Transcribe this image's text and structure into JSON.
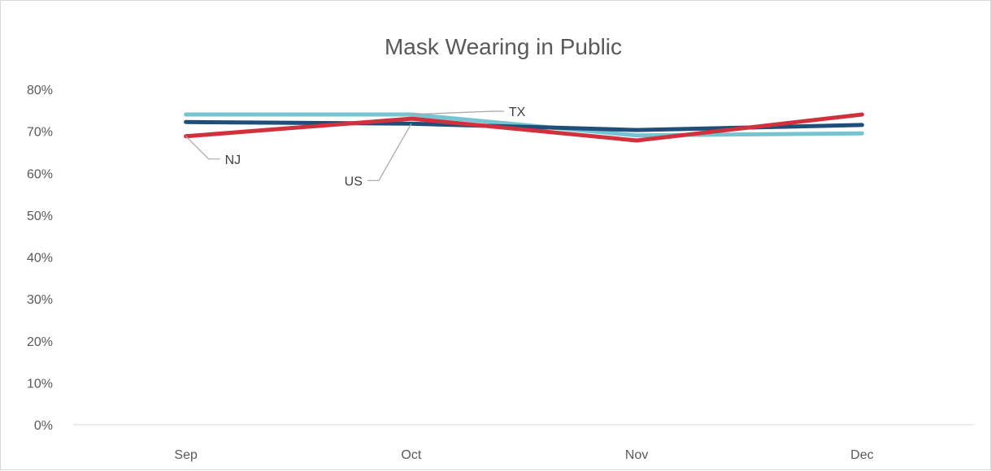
{
  "chart_data": {
    "type": "line",
    "title": "Mask Wearing in Public",
    "categories": [
      "Sep",
      "Oct",
      "Nov",
      "Dec"
    ],
    "y_tick_labels": [
      "0%",
      "10%",
      "20%",
      "30%",
      "40%",
      "50%",
      "60%",
      "70%",
      "80%"
    ],
    "ylim": [
      0,
      0.8
    ],
    "grid": false,
    "legend": "none",
    "series": [
      {
        "name": "US",
        "color": "#1f4e79",
        "values": [
          0.722,
          0.718,
          0.703,
          0.715
        ]
      },
      {
        "name": "TX",
        "color": "#76c4d2",
        "values": [
          0.74,
          0.74,
          0.69,
          0.695
        ]
      },
      {
        "name": "NJ",
        "color": "#d1313d",
        "values": [
          0.688,
          0.73,
          0.678,
          0.74
        ]
      }
    ],
    "callouts": [
      {
        "series": "NJ",
        "category": "Sep",
        "text": "NJ"
      },
      {
        "series": "US",
        "category": "Oct",
        "text": "US"
      },
      {
        "series": "TX",
        "category": "Oct",
        "text": "TX"
      }
    ]
  }
}
